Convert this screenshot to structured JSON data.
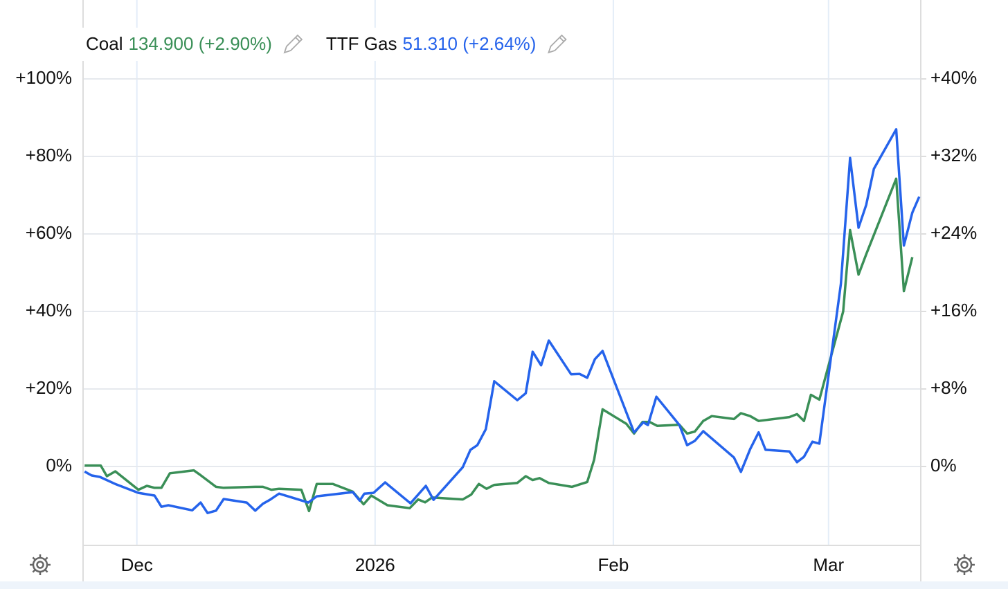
{
  "chart_data": {
    "type": "line",
    "xlim": [
      -7,
      102
    ],
    "xticks": [
      {
        "value": 0,
        "label": "Dec"
      },
      {
        "value": 31,
        "label": "2026"
      },
      {
        "value": 62,
        "label": "Feb"
      },
      {
        "value": 90,
        "label": "Mar"
      }
    ],
    "ylim": [
      -20,
      120
    ],
    "yticks": [
      {
        "value": 0,
        "label": "0%"
      },
      {
        "value": 20,
        "label": "+20%"
      },
      {
        "value": 40,
        "label": "+40%"
      },
      {
        "value": 60,
        "label": "+60%"
      },
      {
        "value": 80,
        "label": "+80%"
      },
      {
        "value": 100,
        "label": "+100%"
      }
    ],
    "y2lim": [
      -8,
      48
    ],
    "y2ticks": [
      {
        "value": 0,
        "label": "0%"
      },
      {
        "value": 8,
        "label": "+8%"
      },
      {
        "value": 16,
        "label": "+16%"
      },
      {
        "value": 24,
        "label": "+24%"
      },
      {
        "value": 32,
        "label": "+32%"
      },
      {
        "value": 40,
        "label": "+40%"
      }
    ],
    "grid": true,
    "series": [
      {
        "name": "Coal",
        "legend_value": "134.900 (+2.90%)",
        "color": "#3a8f57",
        "axis": "y2",
        "x": [
          -6.8,
          -4.7,
          -3.9,
          -2.8,
          0.2,
          1.3,
          2.3,
          3.2,
          4.3,
          7.4,
          8.3,
          10.3,
          11.3,
          15.4,
          16.4,
          17.5,
          18.5,
          21.4,
          22.4,
          23.4,
          25.5,
          28.1,
          29.5,
          30.5,
          32.6,
          35.5,
          36.6,
          37.5,
          38.4,
          42.4,
          43.5,
          44.5,
          45.5,
          46.5,
          49.5,
          50.6,
          51.5,
          52.4,
          53.6,
          56.6,
          58.6,
          59.5,
          60.6,
          63.7,
          64.7,
          65.8,
          66.7,
          67.7,
          70.6,
          71.6,
          72.6,
          73.7,
          74.8,
          77.7,
          78.6,
          79.8,
          80.9,
          84.9,
          85.9,
          86.8,
          87.7,
          88.8,
          91.9,
          92.8,
          93.9,
          94.9,
          98.8,
          99.8,
          100.9
        ],
        "values": [
          0.1,
          0.1,
          -1.0,
          -0.5,
          -2.4,
          -2.0,
          -2.2,
          -2.2,
          -0.7,
          -0.4,
          -0.9,
          -2.1,
          -2.2,
          -2.1,
          -2.1,
          -2.4,
          -2.3,
          -2.4,
          -4.6,
          -1.8,
          -1.8,
          -2.6,
          -3.9,
          -3.0,
          -4.0,
          -4.3,
          -3.4,
          -3.7,
          -3.2,
          -3.4,
          -2.9,
          -1.8,
          -2.3,
          -1.9,
          -1.7,
          -1.0,
          -1.4,
          -1.2,
          -1.7,
          -2.1,
          -1.6,
          0.7,
          5.9,
          4.4,
          3.4,
          4.6,
          4.6,
          4.2,
          4.3,
          3.4,
          3.6,
          4.7,
          5.2,
          4.9,
          5.5,
          5.2,
          4.7,
          5.1,
          5.4,
          4.7,
          7.4,
          6.9,
          16.0,
          24.4,
          19.8,
          21.9,
          29.7,
          18.1,
          21.6
        ]
      },
      {
        "name": "TTF Gas",
        "legend_value": "51.310 (+2.64%)",
        "color": "#2563eb",
        "axis": "y",
        "x": [
          -6.8,
          -5.9,
          -4.8,
          -2.7,
          0.2,
          2.3,
          3.2,
          4.1,
          7.2,
          8.3,
          9.2,
          10.3,
          11.3,
          14.3,
          15.4,
          16.4,
          17.3,
          18.5,
          20.5,
          22.3,
          23.4,
          28.1,
          29.0,
          29.6,
          30.8,
          32.3,
          35.6,
          37.6,
          38.6,
          42.4,
          43.4,
          44.3,
          45.4,
          46.5,
          49.5,
          50.6,
          51.5,
          52.6,
          53.6,
          56.5,
          57.6,
          58.6,
          59.6,
          60.6,
          64.7,
          65.9,
          66.5,
          67.6,
          70.6,
          71.6,
          72.6,
          73.7,
          77.7,
          78.6,
          79.8,
          80.9,
          81.8,
          84.9,
          85.9,
          86.8,
          87.9,
          88.8,
          91.6,
          92.8,
          93.9,
          94.9,
          95.9,
          98.8,
          99.8,
          100.9,
          101.8
        ],
        "values": [
          -1.3,
          -2.3,
          -2.7,
          -4.6,
          -6.8,
          -7.5,
          -10.4,
          -10.0,
          -11.3,
          -9.3,
          -12.0,
          -11.4,
          -8.4,
          -9.3,
          -11.4,
          -9.6,
          -8.6,
          -7.0,
          -8.2,
          -9.3,
          -7.7,
          -6.6,
          -8.8,
          -7.0,
          -6.8,
          -4.1,
          -9.5,
          -5.0,
          -8.6,
          -0.2,
          4.3,
          5.5,
          9.6,
          22.0,
          17.1,
          18.9,
          29.6,
          26.1,
          32.5,
          23.8,
          23.9,
          22.9,
          27.7,
          29.8,
          8.8,
          11.4,
          10.7,
          18.0,
          10.7,
          5.5,
          6.6,
          9.1,
          2.3,
          -1.4,
          4.5,
          8.8,
          4.3,
          3.9,
          1.1,
          2.5,
          6.4,
          5.9,
          47.1,
          79.6,
          61.6,
          67.5,
          76.8,
          87.0,
          57.0,
          65.5,
          69.6
        ]
      }
    ]
  }
}
